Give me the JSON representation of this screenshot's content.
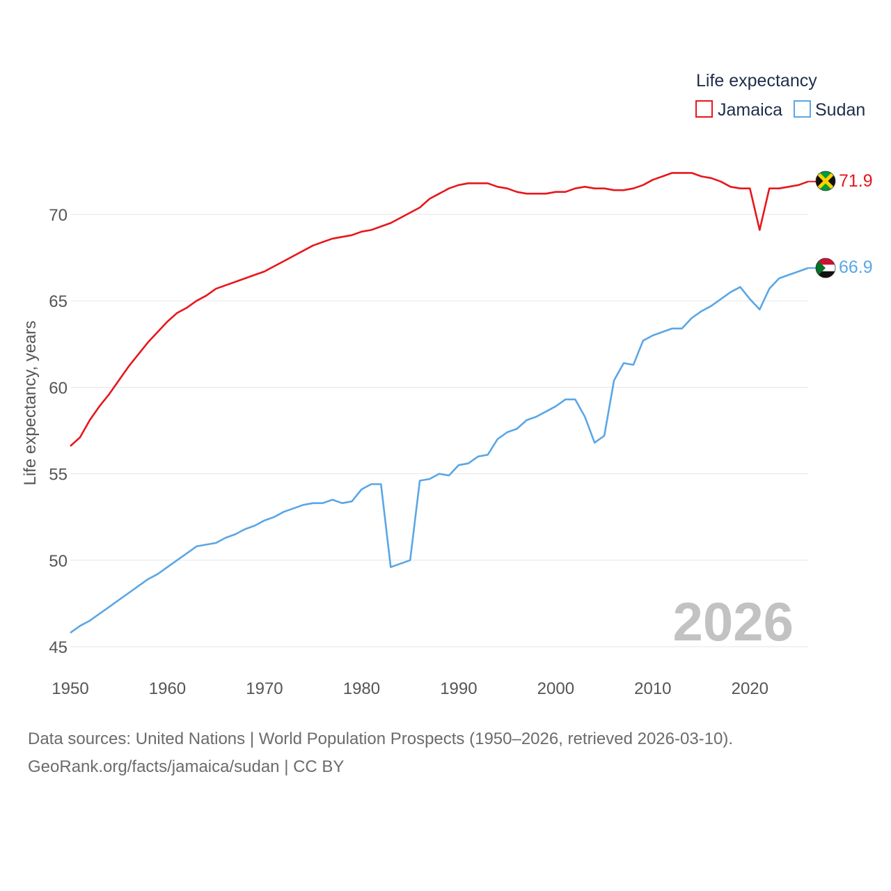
{
  "chart_data": {
    "type": "line",
    "title": "",
    "ylabel": "Life expectancy, years",
    "xlabel": "",
    "legend_title": "Life expectancy",
    "legend_position": "top-right",
    "watermark_year": "2026",
    "xlim": [
      1950,
      2026
    ],
    "ylim": [
      45,
      72.2
    ],
    "x_ticks": [
      1950,
      1960,
      1970,
      1980,
      1990,
      2000,
      2010,
      2020
    ],
    "y_ticks": [
      45,
      50,
      55,
      60,
      65,
      70
    ],
    "grid": true,
    "x": [
      1950,
      1951,
      1952,
      1953,
      1954,
      1955,
      1956,
      1957,
      1958,
      1959,
      1960,
      1961,
      1962,
      1963,
      1964,
      1965,
      1966,
      1967,
      1968,
      1969,
      1970,
      1971,
      1972,
      1973,
      1974,
      1975,
      1976,
      1977,
      1978,
      1979,
      1980,
      1981,
      1982,
      1983,
      1984,
      1985,
      1986,
      1987,
      1988,
      1989,
      1990,
      1991,
      1992,
      1993,
      1994,
      1995,
      1996,
      1997,
      1998,
      1999,
      2000,
      2001,
      2002,
      2003,
      2004,
      2005,
      2006,
      2007,
      2008,
      2009,
      2010,
      2011,
      2012,
      2013,
      2014,
      2015,
      2016,
      2017,
      2018,
      2019,
      2020,
      2021,
      2022,
      2023,
      2024,
      2025,
      2026
    ],
    "series": [
      {
        "name": "Jamaica",
        "color": "#e8161b",
        "end_label": "71.9",
        "flag": "jamaica-flag",
        "values": [
          56.6,
          57.1,
          58.1,
          58.9,
          59.6,
          60.4,
          61.2,
          61.9,
          62.6,
          63.2,
          63.8,
          64.3,
          64.6,
          65.0,
          65.3,
          65.7,
          65.9,
          66.1,
          66.3,
          66.5,
          66.7,
          67.0,
          67.3,
          67.6,
          67.9,
          68.2,
          68.4,
          68.6,
          68.7,
          68.8,
          69.0,
          69.1,
          69.3,
          69.5,
          69.8,
          70.1,
          70.4,
          70.9,
          71.2,
          71.5,
          71.7,
          71.8,
          71.8,
          71.8,
          71.6,
          71.5,
          71.3,
          71.2,
          71.2,
          71.2,
          71.3,
          71.3,
          71.5,
          71.6,
          71.5,
          71.5,
          71.4,
          71.4,
          71.5,
          71.7,
          72.0,
          72.2,
          72.4,
          72.4,
          72.4,
          72.2,
          72.1,
          71.9,
          71.6,
          71.5,
          71.5,
          69.1,
          71.5,
          71.5,
          71.6,
          71.7,
          71.9
        ]
      },
      {
        "name": "Sudan",
        "color": "#5aa6e6",
        "end_label": "66.9",
        "flag": "sudan-flag",
        "values": [
          45.8,
          46.2,
          46.5,
          46.9,
          47.3,
          47.7,
          48.1,
          48.5,
          48.9,
          49.2,
          49.6,
          50.0,
          50.4,
          50.8,
          50.9,
          51.0,
          51.3,
          51.5,
          51.8,
          52.0,
          52.3,
          52.5,
          52.8,
          53.0,
          53.2,
          53.3,
          53.3,
          53.5,
          53.3,
          53.4,
          54.1,
          54.4,
          54.4,
          49.6,
          49.8,
          50.0,
          54.6,
          54.7,
          55.0,
          54.9,
          55.5,
          55.6,
          56.0,
          56.1,
          57.0,
          57.4,
          57.6,
          58.1,
          58.3,
          58.6,
          58.9,
          59.3,
          59.3,
          58.3,
          56.8,
          57.2,
          60.4,
          61.4,
          61.3,
          62.7,
          63.0,
          63.2,
          63.4,
          63.4,
          64.0,
          64.4,
          64.7,
          65.1,
          65.5,
          65.8,
          65.1,
          64.5,
          65.7,
          66.3,
          66.5,
          66.7,
          66.9
        ]
      }
    ]
  },
  "footer": {
    "line1": "Data sources: United Nations | World Population Prospects (1950–2026, retrieved 2026-03-10).",
    "line2": "GeoRank.org/facts/jamaica/sudan | CC BY"
  }
}
